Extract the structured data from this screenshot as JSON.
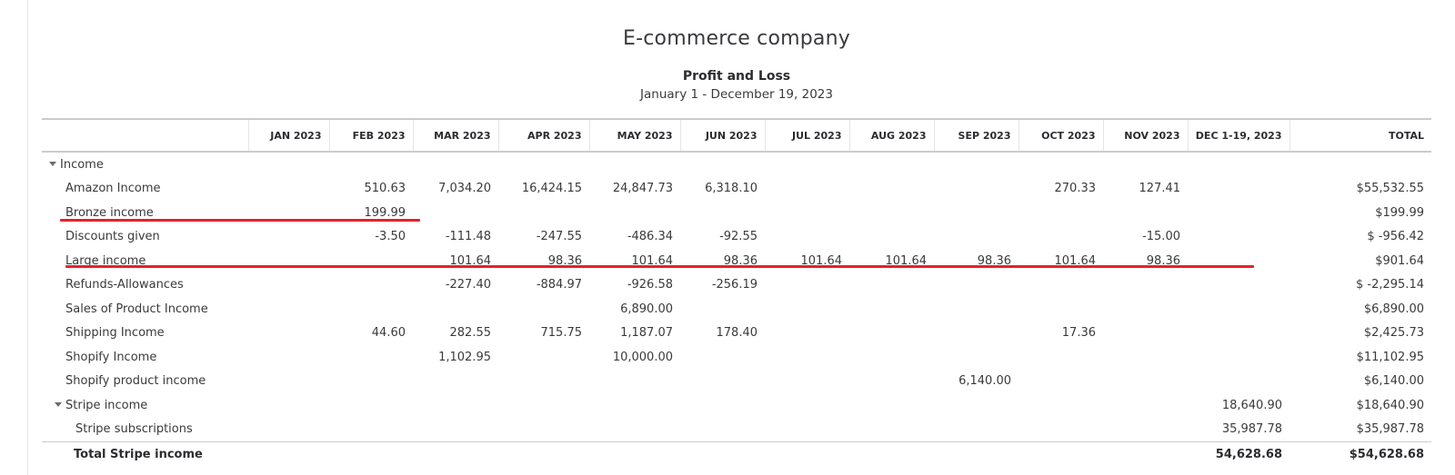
{
  "report": {
    "company": "E-commerce company",
    "title": "Profit and Loss",
    "date_range": "January 1 - December 19, 2023"
  },
  "columns": [
    "",
    "JAN 2023",
    "FEB 2023",
    "MAR 2023",
    "APR 2023",
    "MAY 2023",
    "JUN 2023",
    "JUL 2023",
    "AUG 2023",
    "SEP 2023",
    "OCT 2023",
    "NOV 2023",
    "DEC 1-19, 2023",
    "TOTAL"
  ],
  "rows": [
    {
      "label": "Income",
      "level": "section",
      "collapsible": true,
      "values": [
        "",
        "",
        "",
        "",
        "",
        "",
        "",
        "",
        "",
        "",
        "",
        "",
        ""
      ]
    },
    {
      "label": "Amazon Income",
      "level": "child",
      "values": [
        "",
        "510.63",
        "7,034.20",
        "16,424.15",
        "24,847.73",
        "6,318.10",
        "",
        "",
        "",
        "270.33",
        "127.41",
        "",
        "$55,532.55"
      ]
    },
    {
      "label": "Bronze income",
      "level": "child",
      "values": [
        "",
        "199.99",
        "",
        "",
        "",
        "",
        "",
        "",
        "",
        "",
        "",
        "",
        "$199.99"
      ]
    },
    {
      "label": "Discounts given",
      "level": "child",
      "values": [
        "",
        "-3.50",
        "-111.48",
        "-247.55",
        "-486.34",
        "-92.55",
        "",
        "",
        "",
        "",
        "-15.00",
        "",
        "$ -956.42"
      ]
    },
    {
      "label": "Large income",
      "level": "child",
      "values": [
        "",
        "",
        "101.64",
        "98.36",
        "101.64",
        "98.36",
        "101.64",
        "101.64",
        "98.36",
        "101.64",
        "98.36",
        "",
        "$901.64"
      ]
    },
    {
      "label": "Refunds-Allowances",
      "level": "child",
      "values": [
        "",
        "",
        "-227.40",
        "-884.97",
        "-926.58",
        "-256.19",
        "",
        "",
        "",
        "",
        "",
        "",
        "$ -2,295.14"
      ]
    },
    {
      "label": "Sales of Product Income",
      "level": "child",
      "values": [
        "",
        "",
        "",
        "",
        "6,890.00",
        "",
        "",
        "",
        "",
        "",
        "",
        "",
        "$6,890.00"
      ]
    },
    {
      "label": "Shipping Income",
      "level": "child",
      "values": [
        "",
        "44.60",
        "282.55",
        "715.75",
        "1,187.07",
        "178.40",
        "",
        "",
        "",
        "17.36",
        "",
        "",
        "$2,425.73"
      ]
    },
    {
      "label": "Shopify Income",
      "level": "child",
      "values": [
        "",
        "",
        "1,102.95",
        "",
        "10,000.00",
        "",
        "",
        "",
        "",
        "",
        "",
        "",
        "$11,102.95"
      ]
    },
    {
      "label": "Shopify product income",
      "level": "child",
      "values": [
        "",
        "",
        "",
        "",
        "",
        "",
        "",
        "",
        "6,140.00",
        "",
        "",
        "",
        "$6,140.00"
      ]
    },
    {
      "label": "Stripe income",
      "level": "child-parent",
      "collapsible": true,
      "values": [
        "",
        "",
        "",
        "",
        "",
        "",
        "",
        "",
        "",
        "",
        "",
        "18,640.90",
        "$18,640.90"
      ]
    },
    {
      "label": "Stripe subscriptions",
      "level": "grandchild",
      "values": [
        "",
        "",
        "",
        "",
        "",
        "",
        "",
        "",
        "",
        "",
        "",
        "35,987.78",
        "$35,987.78"
      ]
    },
    {
      "label": "Total Stripe income",
      "level": "total",
      "values": [
        "",
        "",
        "",
        "",
        "",
        "",
        "",
        "",
        "",
        "",
        "",
        "54,628.68",
        "$54,628.68"
      ]
    }
  ],
  "annotations": {
    "underline_color": "#e8202a"
  }
}
